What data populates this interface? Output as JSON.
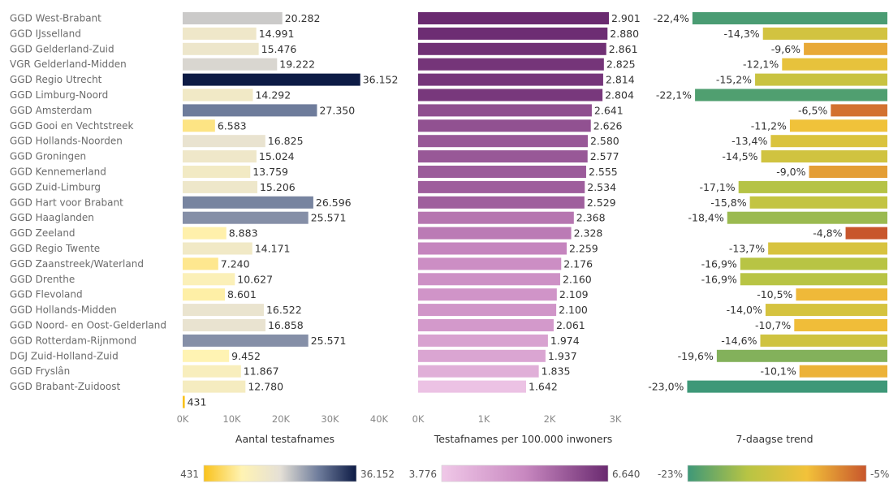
{
  "chart_data": {
    "type": "bar",
    "categories": [
      "GGD West-Brabant",
      "GGD IJsselland",
      "GGD Gelderland-Zuid",
      "VGR Gelderland-Midden",
      "GGD Regio Utrecht",
      "GGD Limburg-Noord",
      "GGD Amsterdam",
      "GGD Gooi en Vechtstreek",
      "GGD Hollands-Noorden",
      "GGD Groningen",
      "GGD Kennemerland",
      "GGD Zuid-Limburg",
      "GGD Hart voor Brabant",
      "GGD Haaglanden",
      "GGD Zeeland",
      "GGD Regio Twente",
      "GGD Zaanstreek/Waterland",
      "GGD Drenthe",
      "GGD Flevoland",
      "GGD Hollands-Midden",
      "GGD Noord- en Oost-Gelderland",
      "GGD Rotterdam-Rijnmond",
      "DGJ Zuid-Holland-Zuid",
      "GGD Fryslân",
      "GGD Brabant-Zuidoost",
      ""
    ],
    "series": [
      {
        "name": "Aantal testafnames",
        "values": [
          20282,
          14991,
          15476,
          19222,
          36152,
          14292,
          27350,
          6583,
          16825,
          15024,
          13759,
          15206,
          26596,
          25571,
          8883,
          14171,
          7240,
          10627,
          8601,
          16522,
          16858,
          25571,
          9452,
          11867,
          12780,
          431
        ],
        "labels": [
          "20.282",
          "14.991",
          "15.476",
          "19.222",
          "36.152",
          "14.292",
          "27.350",
          "6.583",
          "16.825",
          "15.024",
          "13.759",
          "15.206",
          "26.596",
          "25.571",
          "8.883",
          "14.171",
          "7.240",
          "10.627",
          "8.601",
          "16.522",
          "16.858",
          "25.571",
          "9.452",
          "11.867",
          "12.780",
          "431"
        ]
      },
      {
        "name": "Testafnames per 100.000 inwoners",
        "values": [
          2901,
          2880,
          2861,
          2825,
          2814,
          2804,
          2641,
          2626,
          2580,
          2577,
          2555,
          2534,
          2529,
          2368,
          2328,
          2259,
          2176,
          2160,
          2109,
          2100,
          2061,
          1974,
          1937,
          1835,
          1642,
          null
        ],
        "labels": [
          "2.901",
          "2.880",
          "2.861",
          "2.825",
          "2.814",
          "2.804",
          "2.641",
          "2.626",
          "2.580",
          "2.577",
          "2.555",
          "2.534",
          "2.529",
          "2.368",
          "2.328",
          "2.259",
          "2.176",
          "2.160",
          "2.109",
          "2.100",
          "2.061",
          "1.974",
          "1.937",
          "1.835",
          "1.642",
          ""
        ]
      },
      {
        "name": "7-daagse trend",
        "values": [
          -22.4,
          -14.3,
          -9.6,
          -12.1,
          -15.2,
          -22.1,
          -6.5,
          -11.2,
          -13.4,
          -14.5,
          -9.0,
          -17.1,
          -15.8,
          -18.4,
          -4.8,
          -13.7,
          -16.9,
          -16.9,
          -10.5,
          -14.0,
          -10.7,
          -14.6,
          -19.6,
          -10.1,
          -23.0,
          null
        ],
        "labels": [
          "-22,4%",
          "-14,3%",
          "-9,6%",
          "-12,1%",
          "-15,2%",
          "-22,1%",
          "-6,5%",
          "-11,2%",
          "-13,4%",
          "-14,5%",
          "-9,0%",
          "-17,1%",
          "-15,8%",
          "-18,4%",
          "-4,8%",
          "-13,7%",
          "-16,9%",
          "-16,9%",
          "-10,5%",
          "-14,0%",
          "-10,7%",
          "-14,6%",
          "-19,6%",
          "-10,1%",
          "-23,0%",
          ""
        ]
      }
    ],
    "panels": [
      {
        "xlabel": "Aantal testafnames",
        "xlim": [
          0,
          40000
        ],
        "ticks": [
          0,
          10000,
          20000,
          30000,
          40000
        ],
        "tick_labels": [
          "0K",
          "10K",
          "20K",
          "30K",
          "40K"
        ],
        "color_scale": {
          "min_label": "431",
          "max_label": "36.152",
          "min": 431,
          "max": 36152,
          "colors": [
            "#f9c21c",
            "#fff3b3",
            "#e5e0d6",
            "#6f7d9c",
            "#0d1b45"
          ]
        }
      },
      {
        "xlabel": "Testafnames per 100.000 inwoners",
        "xlim": [
          0,
          3000
        ],
        "ticks": [
          0,
          1000,
          2000,
          3000
        ],
        "tick_labels": [
          "0K",
          "1K",
          "2K",
          "3K"
        ],
        "color_scale": {
          "min_label": "3.776",
          "max_label": "6.640",
          "min": 3776,
          "max": 6640,
          "colors": [
            "#f0c8e8",
            "#c888c0",
            "#6a2a70"
          ]
        }
      },
      {
        "xlabel": "7-daagse trend",
        "xlim": [
          -25,
          0
        ],
        "ticks": [],
        "tick_labels": [],
        "color_scale": {
          "min_label": "-23%",
          "max_label": "-5%",
          "min": -23,
          "max": -5,
          "colors": [
            "#3e9878",
            "#b7c444",
            "#f2c23a",
            "#c8562c"
          ]
        }
      }
    ],
    "grid": false,
    "legend": "bottom"
  }
}
